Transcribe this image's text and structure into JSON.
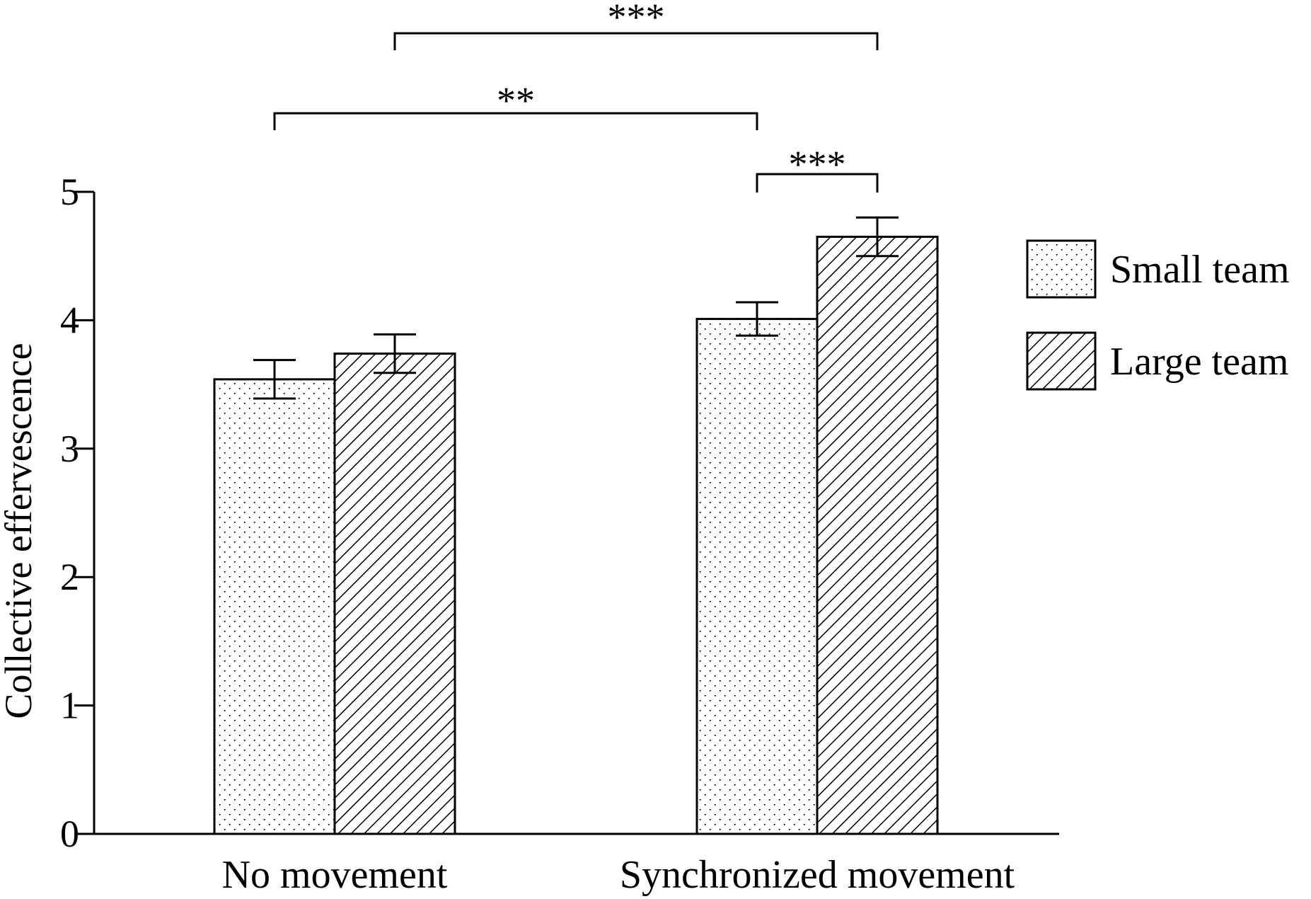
{
  "chart_data": {
    "type": "bar",
    "categories": [
      "No movement",
      "Synchronized movement"
    ],
    "series": [
      {
        "name": "Small team",
        "values": [
          3.54,
          4.01
        ],
        "error": [
          0.15,
          0.13
        ],
        "pattern": "dots"
      },
      {
        "name": "Large team",
        "values": [
          3.74,
          4.65
        ],
        "error": [
          0.15,
          0.15
        ],
        "pattern": "diagonal-hatch"
      }
    ],
    "ylabel": "Collective effervescence",
    "xlabel": "",
    "ylim": [
      0,
      5
    ],
    "yticks": [
      0,
      1,
      2,
      3,
      4,
      5
    ],
    "legend_position": "right",
    "grid": false,
    "significance": [
      {
        "from": "Small team / No movement",
        "to": "Small team / Synchronized movement",
        "label": "**"
      },
      {
        "from": "Large team / No movement",
        "to": "Large team / Synchronized movement",
        "label": "***"
      },
      {
        "from": "Small team / Synchronized movement",
        "to": "Large team / Synchronized movement",
        "label": "***"
      }
    ],
    "colors": {
      "bar_stroke": "#000000",
      "fill": "#ffffff",
      "ink": "#000000"
    }
  }
}
